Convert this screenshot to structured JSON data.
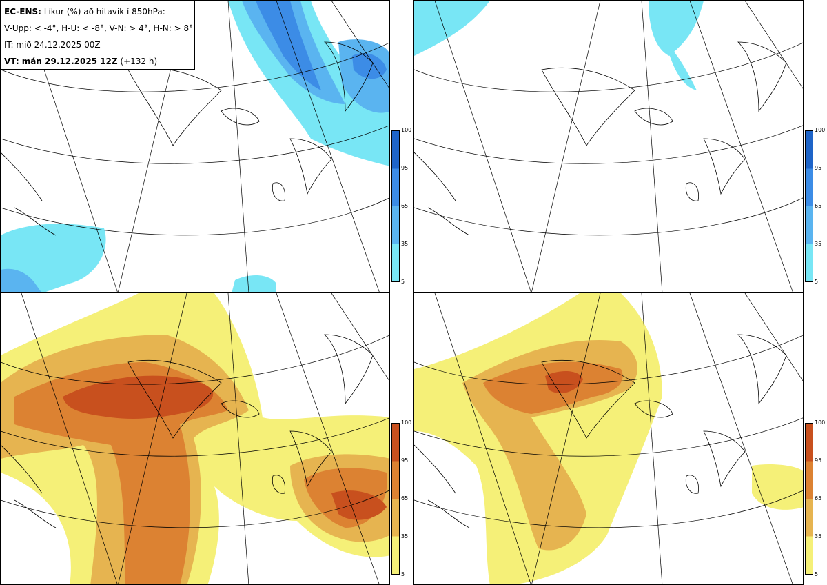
{
  "header": {
    "model": "EC-ENS:",
    "title": " Líkur (%) að hitavik í 850hPa:",
    "criteria": "V-Upp: < -4°, H-U: < -8°, V-N: > 4°, H-N: > 8°",
    "init_time": "IT: mið 24.12.2025 00Z",
    "valid_prefix": "VT: mán 29.12.2025 12Z",
    "valid_suffix": " (+132 h)"
  },
  "colorbars": {
    "ticks": [
      "100",
      "95",
      "65",
      "35",
      "5"
    ],
    "cold_colors": [
      "#1e64c8",
      "#3c8ce6",
      "#5ab4f0",
      "#78e6f5"
    ],
    "warm_colors": [
      "#c8501e",
      "#dc8232",
      "#e6b450",
      "#f5f078"
    ]
  },
  "panels": [
    {
      "id": "cold-moderate",
      "palette": "cold"
    },
    {
      "id": "cold-strong",
      "palette": "cold"
    },
    {
      "id": "warm-moderate",
      "palette": "warm"
    },
    {
      "id": "warm-strong",
      "palette": "warm"
    }
  ]
}
